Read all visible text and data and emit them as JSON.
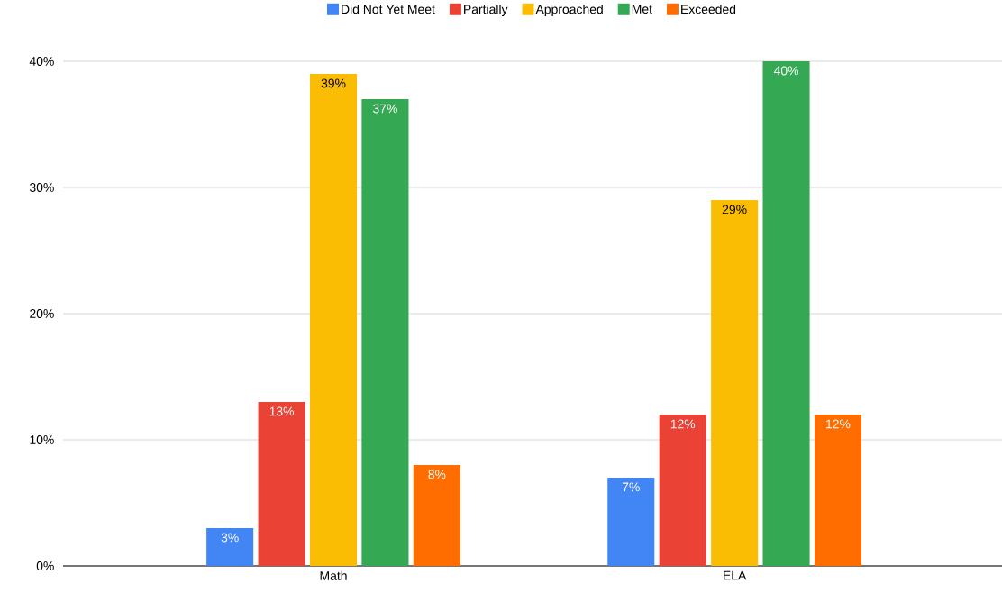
{
  "chart_data": {
    "type": "bar",
    "categories": [
      "Math",
      "ELA"
    ],
    "series": [
      {
        "name": "Did Not Yet Meet",
        "color": "#4285f4",
        "values": [
          3,
          7
        ],
        "value_labels": [
          "3%",
          "7%"
        ]
      },
      {
        "name": "Partially",
        "color": "#ea4335",
        "values": [
          13,
          12
        ],
        "value_labels": [
          "13%",
          "12%"
        ]
      },
      {
        "name": "Approached",
        "color": "#fbbc04",
        "values": [
          39,
          29
        ],
        "value_labels": [
          "39%",
          "29%"
        ]
      },
      {
        "name": "Met",
        "color": "#34a853",
        "values": [
          37,
          40
        ],
        "value_labels": [
          "37%",
          "40%"
        ]
      },
      {
        "name": "Exceeded",
        "color": "#ff6d01",
        "values": [
          8,
          12
        ],
        "value_labels": [
          "8%",
          "12%"
        ]
      }
    ],
    "ylim": [
      0,
      40
    ],
    "yticks": [
      {
        "value": 0,
        "label": "0%"
      },
      {
        "value": 10,
        "label": "10%"
      },
      {
        "value": 20,
        "label": "20%"
      },
      {
        "value": 30,
        "label": "30%"
      },
      {
        "value": 40,
        "label": "40%"
      }
    ],
    "grid": "y",
    "legend": "top"
  }
}
